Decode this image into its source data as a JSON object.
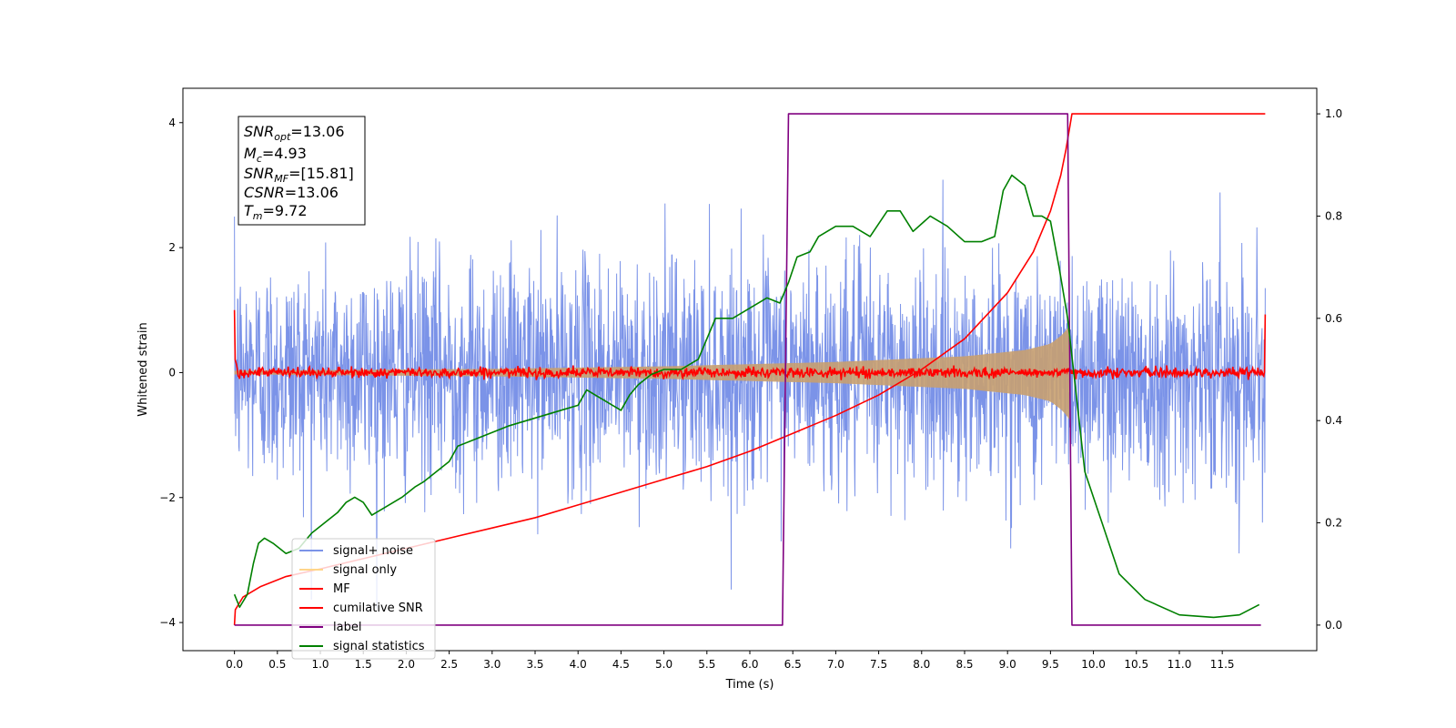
{
  "chart_data": {
    "type": "line",
    "xlabel": "Time (s)",
    "ylabel_left": "Whitened strain",
    "ylabel_right": "",
    "xlim": [
      -0.6,
      12.6
    ],
    "ylim_left": [
      -4.45,
      4.55
    ],
    "ylim_right": [
      -0.05,
      1.05
    ],
    "x_ticks": [
      "0.0",
      "0.5",
      "1.0",
      "1.5",
      "2.0",
      "2.5",
      "3.0",
      "3.5",
      "4.0",
      "4.5",
      "5.0",
      "5.5",
      "6.0",
      "6.5",
      "7.0",
      "7.5",
      "8.0",
      "8.5",
      "9.0",
      "9.5",
      "10.0",
      "10.5",
      "11.0",
      "11.5"
    ],
    "y_ticks_left": [
      "4",
      "2",
      "0",
      "−2",
      "−4"
    ],
    "y_ticks_right": [
      "1.0",
      "0.8",
      "0.6",
      "0.4",
      "0.2",
      "0.0"
    ],
    "annotation": {
      "lines": [
        {
          "base": "SNR",
          "sub": "opt",
          "value": "=13.06"
        },
        {
          "base": "M",
          "sub": "c",
          "value": "=4.93"
        },
        {
          "base": "SNR",
          "sub": "MF",
          "value": "=[15.81]"
        },
        {
          "base": "CSNR",
          "sub": "",
          "value": "=13.06"
        },
        {
          "base": "T",
          "sub": "m",
          "value": "=9.72"
        }
      ]
    },
    "legend": {
      "placement": "lower-left",
      "entries": [
        {
          "label": "signal+ noise",
          "color": "#7b93e8"
        },
        {
          "label": "signal only",
          "color": "#ffd58a"
        },
        {
          "label": "MF",
          "color": "#ff0000"
        },
        {
          "label": "cumilative SNR",
          "color": "#ff0000"
        },
        {
          "label": "label",
          "color": "#800080"
        },
        {
          "label": "signal statistics",
          "color": "#008000"
        }
      ]
    },
    "series": [
      {
        "name": "signal+ noise",
        "axis": "left",
        "color": "#7b93e8",
        "x_range": [
          0.0,
          12.0
        ],
        "noise_sigma": 0.9,
        "peak_abs": 4.0
      },
      {
        "name": "signal only",
        "axis": "left",
        "color": "#c8a070",
        "x_range": [
          0.0,
          9.72
        ],
        "envelope": {
          "x": [
            0.0,
            3.0,
            5.0,
            7.0,
            8.5,
            9.2,
            9.5,
            9.65,
            9.72
          ],
          "y": [
            0.03,
            0.06,
            0.1,
            0.17,
            0.26,
            0.36,
            0.46,
            0.62,
            0.75
          ]
        }
      },
      {
        "name": "MF",
        "axis": "left",
        "color": "#ff0000",
        "x_range": [
          0.0,
          12.0
        ],
        "level": 0.0,
        "ripple": 0.08,
        "start_value": 1.0,
        "end_value": 0.93
      },
      {
        "name": "cumilative SNR",
        "axis": "right",
        "color": "#ff0000",
        "x": [
          0.0,
          0.01,
          0.1,
          0.3,
          0.6,
          1.0,
          1.5,
          2.0,
          2.5,
          3.0,
          3.5,
          4.0,
          4.5,
          5.0,
          5.5,
          6.0,
          6.5,
          7.0,
          7.5,
          8.0,
          8.5,
          9.0,
          9.3,
          9.5,
          9.62,
          9.68,
          9.72,
          9.75,
          12.0
        ],
        "y": [
          0.0,
          0.03,
          0.055,
          0.075,
          0.095,
          0.11,
          0.13,
          0.15,
          0.17,
          0.19,
          0.21,
          0.235,
          0.26,
          0.285,
          0.31,
          0.34,
          0.375,
          0.41,
          0.45,
          0.5,
          0.56,
          0.65,
          0.73,
          0.81,
          0.88,
          0.93,
          0.97,
          1.0,
          1.0
        ]
      },
      {
        "name": "label",
        "axis": "right",
        "color": "#800080",
        "x": [
          0.0,
          6.38,
          6.45,
          9.7,
          9.75,
          11.95
        ],
        "y": [
          0.0,
          0.0,
          1.0,
          1.0,
          0.0,
          0.0
        ]
      },
      {
        "name": "signal statistics",
        "axis": "right",
        "color": "#008000",
        "x": [
          0.0,
          0.06,
          0.15,
          0.22,
          0.28,
          0.35,
          0.45,
          0.6,
          0.75,
          0.9,
          1.05,
          1.2,
          1.3,
          1.4,
          1.5,
          1.6,
          1.75,
          1.95,
          2.1,
          2.2,
          2.35,
          2.5,
          2.6,
          2.75,
          2.9,
          3.05,
          3.2,
          3.4,
          3.6,
          3.8,
          4.0,
          4.1,
          4.3,
          4.5,
          4.6,
          4.7,
          4.85,
          5.0,
          5.2,
          5.4,
          5.5,
          5.6,
          5.7,
          5.8,
          6.0,
          6.2,
          6.35,
          6.45,
          6.55,
          6.7,
          6.8,
          7.0,
          7.2,
          7.4,
          7.6,
          7.75,
          7.9,
          8.1,
          8.3,
          8.5,
          8.7,
          8.85,
          8.95,
          9.05,
          9.2,
          9.3,
          9.4,
          9.5,
          9.6,
          9.7,
          9.8,
          9.9,
          10.1,
          10.3,
          10.6,
          11.0,
          11.4,
          11.7,
          11.93
        ],
        "y": [
          0.06,
          0.035,
          0.06,
          0.12,
          0.16,
          0.17,
          0.16,
          0.14,
          0.15,
          0.18,
          0.2,
          0.22,
          0.24,
          0.25,
          0.24,
          0.215,
          0.23,
          0.25,
          0.27,
          0.28,
          0.3,
          0.32,
          0.35,
          0.36,
          0.37,
          0.38,
          0.39,
          0.4,
          0.41,
          0.42,
          0.43,
          0.46,
          0.44,
          0.42,
          0.45,
          0.47,
          0.49,
          0.5,
          0.5,
          0.52,
          0.56,
          0.6,
          0.6,
          0.6,
          0.62,
          0.64,
          0.63,
          0.67,
          0.72,
          0.73,
          0.76,
          0.78,
          0.78,
          0.76,
          0.81,
          0.81,
          0.77,
          0.8,
          0.78,
          0.75,
          0.75,
          0.76,
          0.85,
          0.88,
          0.86,
          0.8,
          0.8,
          0.79,
          0.7,
          0.6,
          0.45,
          0.3,
          0.2,
          0.1,
          0.05,
          0.02,
          0.015,
          0.02,
          0.04
        ]
      }
    ]
  }
}
